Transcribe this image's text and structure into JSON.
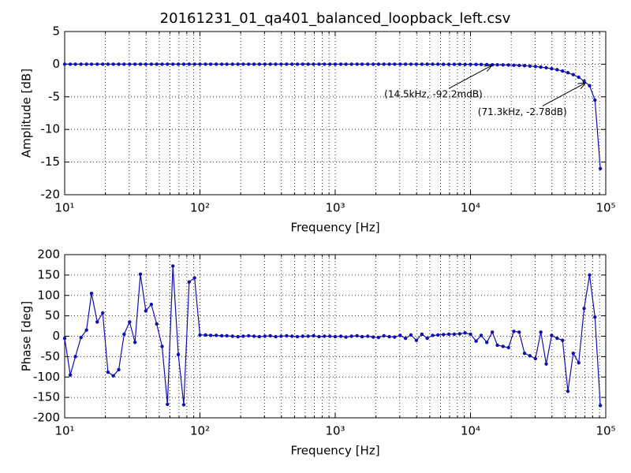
{
  "chart_data": [
    {
      "type": "line",
      "title": "20161231_01_qa401_balanced_loopback_left.csv",
      "xlabel": "Frequency [Hz]",
      "ylabel": "Amplitude [dB]",
      "xscale": "log",
      "grid": true,
      "xlim": [
        10,
        100000
      ],
      "xticks": [
        {
          "value": 10,
          "label": "10¹"
        },
        {
          "value": 100,
          "label": "10²"
        },
        {
          "value": 1000,
          "label": "10³"
        },
        {
          "value": 10000,
          "label": "10⁴"
        },
        {
          "value": 100000,
          "label": "10⁵"
        }
      ],
      "xminorticks": [
        20,
        30,
        40,
        50,
        60,
        70,
        80,
        90,
        200,
        300,
        400,
        500,
        600,
        700,
        800,
        900,
        2000,
        3000,
        4000,
        5000,
        6000,
        7000,
        8000,
        9000,
        20000,
        30000,
        40000,
        50000,
        60000,
        70000,
        80000,
        90000
      ],
      "ylim": [
        -20,
        5
      ],
      "yticks": [
        -20,
        -15,
        -10,
        -5,
        0,
        5
      ],
      "x": [
        10,
        11,
        12,
        13.2,
        14.5,
        15.8,
        17.4,
        19.1,
        20.9,
        22.9,
        25.1,
        27.5,
        30.2,
        33.1,
        36.3,
        39.8,
        43.7,
        47.9,
        52.5,
        57.5,
        63.1,
        69.2,
        75.9,
        83.2,
        91.2,
        100,
        110,
        120,
        132,
        145,
        158,
        174,
        191,
        209,
        229,
        251,
        275,
        302,
        331,
        363,
        398,
        437,
        479,
        525,
        575,
        631,
        692,
        759,
        832,
        912,
        1000,
        1100,
        1200,
        1320,
        1450,
        1580,
        1740,
        1910,
        2090,
        2290,
        2510,
        2750,
        3020,
        3310,
        3630,
        3980,
        4370,
        4790,
        5250,
        5750,
        6310,
        6920,
        7590,
        8320,
        9120,
        10000,
        11000,
        12000,
        13200,
        14500,
        15800,
        17400,
        19100,
        20900,
        22900,
        25100,
        27500,
        30200,
        33100,
        36300,
        39800,
        43700,
        47900,
        52500,
        57500,
        63100,
        69200,
        75900,
        83200,
        91200
      ],
      "series": [
        {
          "name": "Amplitude",
          "color": "#1010b0",
          "values": [
            0,
            0,
            0,
            0,
            0,
            0,
            0,
            0,
            0,
            0,
            0,
            0,
            0,
            0,
            0,
            0,
            0,
            0,
            0,
            0,
            0,
            0,
            0,
            0,
            0,
            0,
            0,
            0,
            0,
            0,
            0,
            0,
            0,
            0,
            0,
            0,
            0,
            0,
            0,
            0,
            0,
            0,
            0,
            0,
            0,
            0,
            0,
            0,
            0,
            0,
            0,
            0,
            0,
            0,
            0,
            0,
            0,
            0,
            0,
            0,
            0,
            0,
            0,
            0,
            0,
            -0.01,
            -0.01,
            -0.01,
            -0.01,
            -0.01,
            -0.02,
            -0.02,
            -0.02,
            -0.02,
            -0.03,
            -0.03,
            -0.04,
            -0.05,
            -0.06,
            -0.0922,
            -0.1,
            -0.11,
            -0.13,
            -0.15,
            -0.19,
            -0.23,
            -0.29,
            -0.36,
            -0.45,
            -0.55,
            -0.7,
            -0.85,
            -1.05,
            -1.3,
            -1.6,
            -2.0,
            -2.6,
            -3.3,
            -5.5,
            -16
          ]
        }
      ],
      "annotations": [
        {
          "text": "(14.5kHz, -92.2mdB)",
          "x": 14500,
          "y": -0.0922
        },
        {
          "text": "(71.3kHz, -2.78dB)",
          "x": 71300,
          "y": -2.78
        }
      ]
    },
    {
      "type": "line",
      "xlabel": "Frequency [Hz]",
      "ylabel": "Phase [deg]",
      "xscale": "log",
      "grid": true,
      "xlim": [
        10,
        100000
      ],
      "xticks": [
        {
          "value": 10,
          "label": "10¹"
        },
        {
          "value": 100,
          "label": "10²"
        },
        {
          "value": 1000,
          "label": "10³"
        },
        {
          "value": 10000,
          "label": "10⁴"
        },
        {
          "value": 100000,
          "label": "10⁵"
        }
      ],
      "xminorticks": [
        20,
        30,
        40,
        50,
        60,
        70,
        80,
        90,
        200,
        300,
        400,
        500,
        600,
        700,
        800,
        900,
        2000,
        3000,
        4000,
        5000,
        6000,
        7000,
        8000,
        9000,
        20000,
        30000,
        40000,
        50000,
        60000,
        70000,
        80000,
        90000
      ],
      "ylim": [
        -200,
        200
      ],
      "yticks": [
        -200,
        -150,
        -100,
        -50,
        0,
        50,
        100,
        150,
        200
      ],
      "x": [
        10,
        11,
        12,
        13.2,
        14.5,
        15.8,
        17.4,
        19.1,
        20.9,
        22.9,
        25.1,
        27.5,
        30.2,
        33.1,
        36.3,
        39.8,
        43.7,
        47.9,
        52.5,
        57.5,
        63.1,
        69.2,
        75.9,
        83.2,
        91.2,
        100,
        110,
        120,
        132,
        145,
        158,
        174,
        191,
        209,
        229,
        251,
        275,
        302,
        331,
        363,
        398,
        437,
        479,
        525,
        575,
        631,
        692,
        759,
        832,
        912,
        1000,
        1100,
        1200,
        1320,
        1450,
        1580,
        1740,
        1910,
        2090,
        2290,
        2510,
        2750,
        3020,
        3310,
        3630,
        3980,
        4370,
        4790,
        5250,
        5750,
        6310,
        6920,
        7590,
        8320,
        9120,
        10000,
        11000,
        12000,
        13200,
        14500,
        15800,
        17400,
        19100,
        20900,
        22900,
        25100,
        27500,
        30200,
        33100,
        36300,
        39800,
        43700,
        47900,
        52500,
        57500,
        63100,
        69200,
        75900,
        83200,
        91200
      ],
      "series": [
        {
          "name": "Phase",
          "color": "#1010b0",
          "values": [
            -5,
            -95,
            -50,
            -3,
            15,
            105,
            35,
            57,
            -88,
            -97,
            -82,
            5,
            35,
            -15,
            152,
            62,
            78,
            30,
            -25,
            -167,
            172,
            -45,
            -168,
            133,
            143,
            3,
            3,
            2,
            2,
            1,
            1,
            0,
            -1,
            0,
            1,
            0,
            -1,
            0,
            1,
            -1,
            0,
            1,
            0,
            -1,
            0,
            0,
            1,
            -1,
            0,
            0,
            -1,
            0,
            -2,
            0,
            1,
            -1,
            0,
            -2,
            -3,
            1,
            -1,
            -2,
            2,
            -5,
            3,
            -10,
            5,
            -5,
            2,
            3,
            4,
            5,
            5,
            6,
            8,
            5,
            -12,
            2,
            -15,
            10,
            -22,
            -25,
            -28,
            12,
            10,
            -42,
            -48,
            -55,
            10,
            -68,
            2,
            -5,
            -10,
            -135,
            -42,
            -65,
            68,
            150,
            47,
            -170
          ]
        }
      ]
    }
  ]
}
